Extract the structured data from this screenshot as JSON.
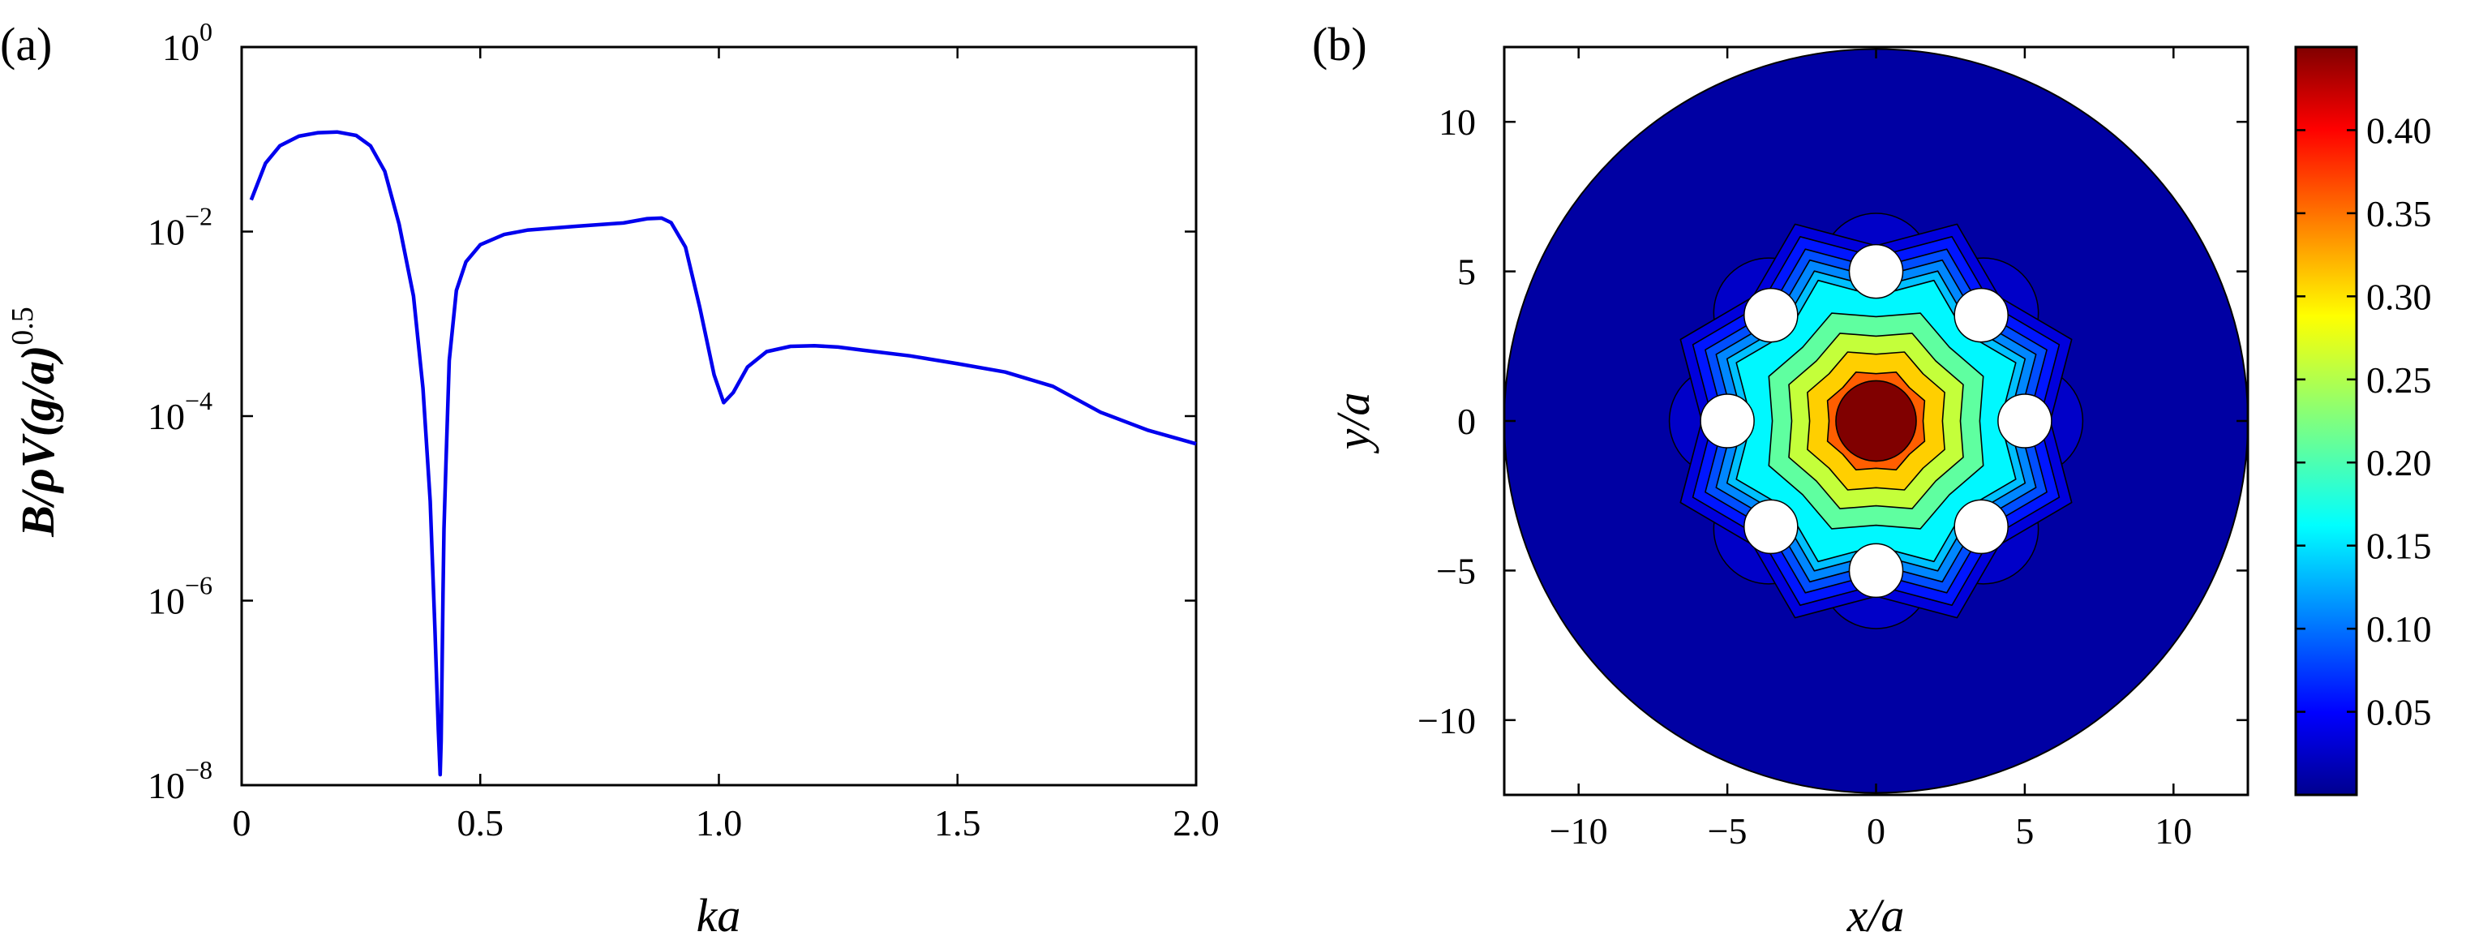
{
  "chart_data": [
    {
      "panel_label": "(a)",
      "type": "line",
      "xlabel": "ka",
      "ylabel": "B/ρV(g/a)",
      "ylabel_exp": "0.5",
      "xlim": [
        0,
        2.0
      ],
      "ylim": [
        1e-08,
        1
      ],
      "yscale": "log",
      "x_ticks": [
        "0",
        "0.5",
        "1.0",
        "1.5",
        "2.0"
      ],
      "y_ticks": [
        {
          "base": "10",
          "exp": "0"
        },
        {
          "base": "10",
          "exp": "−2"
        },
        {
          "base": "10",
          "exp": "−4"
        },
        {
          "base": "10",
          "exp": "−6"
        },
        {
          "base": "10",
          "exp": "−8"
        }
      ],
      "grid": false,
      "color": "#0000ee",
      "x": [
        0.02,
        0.05,
        0.08,
        0.12,
        0.16,
        0.2,
        0.24,
        0.27,
        0.3,
        0.33,
        0.36,
        0.38,
        0.395,
        0.405,
        0.412,
        0.416,
        0.418,
        0.42,
        0.422,
        0.424,
        0.428,
        0.435,
        0.45,
        0.47,
        0.5,
        0.55,
        0.6,
        0.7,
        0.8,
        0.85,
        0.88,
        0.9,
        0.93,
        0.96,
        0.99,
        1.01,
        1.03,
        1.06,
        1.1,
        1.15,
        1.2,
        1.25,
        1.3,
        1.4,
        1.5,
        1.6,
        1.7,
        1.8,
        1.9,
        2.0
      ],
      "y": [
        0.022,
        0.055,
        0.085,
        0.108,
        0.118,
        0.12,
        0.11,
        0.085,
        0.045,
        0.012,
        0.002,
        0.0002,
        1.2e-05,
        5e-07,
        4e-08,
        1.3e-08,
        3e-08,
        2e-07,
        1.2e-06,
        6e-06,
        3e-05,
        0.0004,
        0.0023,
        0.0047,
        0.0072,
        0.0093,
        0.0104,
        0.0114,
        0.0124,
        0.0138,
        0.014,
        0.0125,
        0.0068,
        0.0015,
        0.00028,
        0.00014,
        0.00018,
        0.00034,
        0.0005,
        0.00057,
        0.00058,
        0.00056,
        0.00052,
        0.00045,
        0.00037,
        0.0003,
        0.00021,
        0.00011,
        7e-05,
        5e-05
      ]
    },
    {
      "panel_label": "(b)",
      "type": "contour",
      "xlabel": "x/a",
      "ylabel": "y/a",
      "xlim": [
        -12.5,
        12.5
      ],
      "ylim": [
        -12.5,
        12.5
      ],
      "x_ticks": [
        {
          "value": -10,
          "label": "−10"
        },
        {
          "value": -5,
          "label": "−5"
        },
        {
          "value": 0,
          "label": "0"
        },
        {
          "value": 5,
          "label": "5"
        },
        {
          "value": 10,
          "label": "10"
        }
      ],
      "y_ticks": [
        {
          "value": 10,
          "label": "10"
        },
        {
          "value": 5,
          "label": "5"
        },
        {
          "value": 0,
          "label": "0"
        },
        {
          "value": -5,
          "label": "−5"
        },
        {
          "value": -10,
          "label": "−10"
        }
      ],
      "domain_radius": 12.5,
      "cylinders": {
        "count": 8,
        "ring_radius": 5,
        "radius": 0.9
      },
      "contour_levels": [
        0.025,
        0.05,
        0.075,
        0.1,
        0.125,
        0.15,
        0.2,
        0.25,
        0.3,
        0.35,
        0.4
      ],
      "peak_value": 0.45,
      "colormap": "jet",
      "colorbar": {
        "min": 0,
        "max": 0.45,
        "ticks": [
          {
            "value": 0.05,
            "label": "0.05"
          },
          {
            "value": 0.1,
            "label": "0.10"
          },
          {
            "value": 0.15,
            "label": "0.15"
          },
          {
            "value": 0.2,
            "label": "0.20"
          },
          {
            "value": 0.25,
            "label": "0.25"
          },
          {
            "value": 0.3,
            "label": "0.30"
          },
          {
            "value": 0.35,
            "label": "0.35"
          },
          {
            "value": 0.4,
            "label": "0.40"
          }
        ]
      }
    }
  ]
}
